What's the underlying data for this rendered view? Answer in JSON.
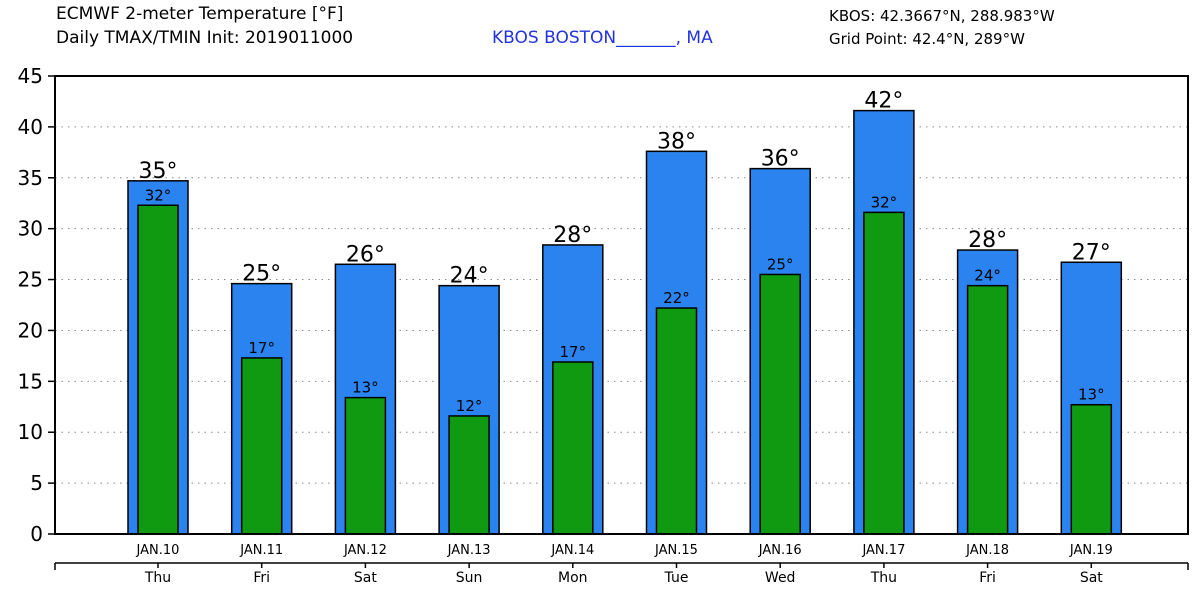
{
  "header": {
    "title_line1": "ECMWF 2-meter Temperature [°F]",
    "title_line2": "Daily TMAX/TMIN Init: 2019011000",
    "station": "KBOS BOSTON_______, MA",
    "coords": "KBOS: 42.3667°N, 288.983°W",
    "grid_point": "Grid Point: 42.4°N, 289°W"
  },
  "colors": {
    "tmax": "#2b83f0",
    "tmin": "#0f9a12",
    "station_text": "#2233dd"
  },
  "chart_data": {
    "type": "bar",
    "title": "ECMWF 2-meter Temperature [°F]",
    "ylim": [
      0,
      45
    ],
    "yticks": [
      "0",
      "5",
      "10",
      "15",
      "20",
      "25",
      "30",
      "35",
      "40",
      "45"
    ],
    "grid": true,
    "categories": [
      "JAN.10",
      "JAN.11",
      "JAN.12",
      "JAN.13",
      "JAN.14",
      "JAN.15",
      "JAN.16",
      "JAN.17",
      "JAN.18",
      "JAN.19"
    ],
    "weekdays": [
      "Thu",
      "Fri",
      "Sat",
      "Sun",
      "Mon",
      "Tue",
      "Wed",
      "Thu",
      "Fri",
      "Sat"
    ],
    "series": [
      {
        "name": "TMAX",
        "values": [
          34.7,
          24.6,
          26.5,
          24.4,
          28.4,
          37.6,
          35.9,
          41.6,
          27.9,
          26.7
        ],
        "labels": [
          "35°",
          "25°",
          "26°",
          "24°",
          "28°",
          "38°",
          "36°",
          "42°",
          "28°",
          "27°"
        ]
      },
      {
        "name": "TMIN",
        "values": [
          32.3,
          17.3,
          13.4,
          11.6,
          16.9,
          22.2,
          25.5,
          31.6,
          24.4,
          12.7
        ],
        "labels": [
          "32°",
          "17°",
          "13°",
          "12°",
          "17°",
          "22°",
          "25°",
          "32°",
          "24°",
          "13°"
        ]
      }
    ]
  }
}
